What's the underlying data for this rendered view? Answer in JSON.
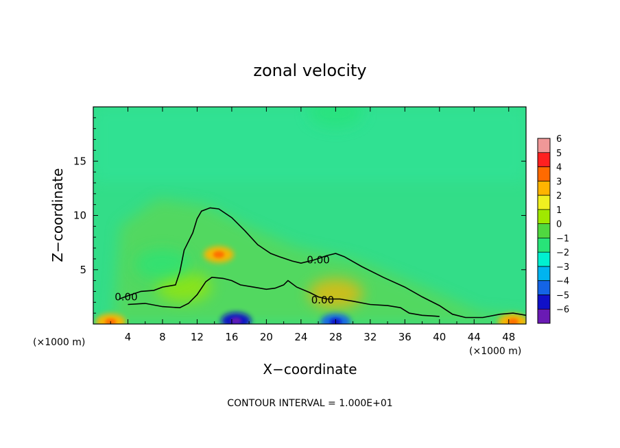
{
  "chart_data": {
    "type": "heatmap",
    "title": "zonal velocity",
    "xlabel": "X−coordinate",
    "ylabel": "Z−coordinate",
    "x_unit_left": "(×1000 m)",
    "x_unit_right": "(×1000 m)",
    "footer": "CONTOUR INTERVAL = 1.000E+01",
    "xlim": [
      0,
      50
    ],
    "ylim": [
      0,
      20
    ],
    "x_ticks": [
      "4",
      "8",
      "12",
      "16",
      "20",
      "24",
      "28",
      "32",
      "36",
      "40",
      "44",
      "48"
    ],
    "x_tick_values": [
      4,
      8,
      12,
      16,
      20,
      24,
      28,
      32,
      36,
      40,
      44,
      48
    ],
    "y_ticks": [
      "5",
      "10",
      "15"
    ],
    "y_tick_values": [
      5,
      10,
      15
    ],
    "colorbar": {
      "labels": [
        "6",
        "5",
        "4",
        "3",
        "2",
        "1",
        "0",
        "−1",
        "−2",
        "−3",
        "−4",
        "−5",
        "−6"
      ],
      "colors": [
        "#f09898",
        "#ff2020",
        "#ff6a00",
        "#ffb400",
        "#f0f020",
        "#a0e800",
        "#50d840",
        "#28e478",
        "#00f0d0",
        "#00b4f0",
        "#1464e6",
        "#1010c8",
        "#6a1ab4"
      ],
      "range": [
        -6,
        6
      ]
    },
    "contour_labels": [
      "0.00",
      "0.00",
      "0.00"
    ],
    "contour_label_positions": [
      [
        3.8,
        2.5
      ],
      [
        26,
        5.9
      ],
      [
        26.5,
        2.2
      ]
    ],
    "zero_contour": {
      "upper": [
        [
          10,
          4.8
        ],
        [
          10.5,
          6.8
        ],
        [
          11.5,
          8.4
        ],
        [
          12,
          9.7
        ],
        [
          12.5,
          10.4
        ],
        [
          13.5,
          10.7
        ],
        [
          14.5,
          10.6
        ],
        [
          16,
          9.8
        ],
        [
          17.5,
          8.6
        ],
        [
          19,
          7.3
        ],
        [
          20.5,
          6.5
        ],
        [
          21.5,
          6.2
        ],
        [
          23,
          5.8
        ],
        [
          24,
          5.6
        ],
        [
          25.5,
          5.9
        ],
        [
          27,
          6.3
        ],
        [
          28,
          6.5
        ],
        [
          29,
          6.2
        ],
        [
          31,
          5.3
        ],
        [
          33.5,
          4.3
        ],
        [
          36,
          3.4
        ],
        [
          38,
          2.5
        ],
        [
          40,
          1.7
        ],
        [
          41.5,
          0.9
        ],
        [
          43,
          0.6
        ],
        [
          45,
          0.6
        ],
        [
          47,
          0.9
        ],
        [
          48.5,
          1.0
        ],
        [
          50,
          0.8
        ]
      ],
      "lower": [
        [
          3,
          2.3
        ],
        [
          4,
          2.6
        ],
        [
          5.5,
          3.0
        ],
        [
          7,
          3.1
        ],
        [
          8,
          3.4
        ],
        [
          9.5,
          3.6
        ],
        [
          10,
          4.8
        ]
      ],
      "core_lower": [
        [
          4,
          1.8
        ],
        [
          6,
          1.9
        ],
        [
          8,
          1.6
        ],
        [
          10,
          1.5
        ],
        [
          11,
          1.9
        ],
        [
          12,
          2.7
        ],
        [
          13,
          3.9
        ],
        [
          13.7,
          4.3
        ],
        [
          15,
          4.2
        ],
        [
          16,
          4.0
        ],
        [
          17,
          3.6
        ],
        [
          18.5,
          3.4
        ],
        [
          20,
          3.2
        ],
        [
          21,
          3.3
        ],
        [
          22,
          3.6
        ],
        [
          22.5,
          4.0
        ],
        [
          23.5,
          3.4
        ],
        [
          25,
          2.9
        ],
        [
          26,
          2.5
        ],
        [
          27,
          2.3
        ],
        [
          28.5,
          2.3
        ],
        [
          30,
          2.1
        ],
        [
          32,
          1.8
        ],
        [
          34,
          1.7
        ],
        [
          35.5,
          1.5
        ],
        [
          36.5,
          1.0
        ],
        [
          38,
          0.8
        ],
        [
          40,
          0.7
        ]
      ]
    },
    "velocity_features": [
      {
        "x": 14.5,
        "z": 6.4,
        "u": 3.5
      },
      {
        "x": 28,
        "z": 2.8,
        "u": 2.8
      },
      {
        "x": 10.5,
        "z": 3.4,
        "u": 1.5
      },
      {
        "x": 8,
        "z": 5.5,
        "u": -0.8
      },
      {
        "x": 16.5,
        "z": 0.3,
        "u": -4.5
      },
      {
        "x": 28,
        "z": 0.2,
        "u": -4.0
      },
      {
        "x": 2,
        "z": 0.2,
        "u": 3.5
      },
      {
        "x": 48.5,
        "z": 0.2,
        "u": 3.0
      },
      {
        "x": 28,
        "z": 19.5,
        "u": -1.2
      }
    ],
    "grid": false,
    "legend": "colorbar right"
  }
}
